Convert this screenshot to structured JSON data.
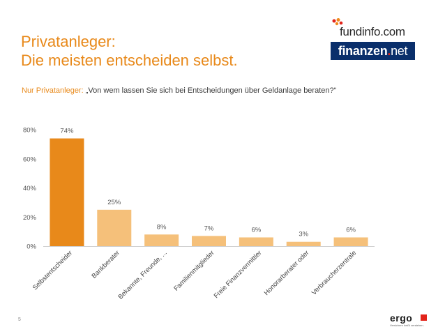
{
  "title": {
    "line1": "Privatanleger:",
    "line2": "Die meisten entscheiden selbst."
  },
  "subtitle": {
    "lead": "Nur Privatanleger:",
    "question": "„Von wem lassen Sie sich bei Entscheidungen über Geldanlage beraten?“"
  },
  "logos": {
    "fundinfo": "fundinfo.com",
    "finanzen_main": "finanzen",
    "finanzen_sep": ".",
    "finanzen_net": "net",
    "ergo": "ergo",
    "ergo_tagline": "Versichern heißt verstehen."
  },
  "footer": {
    "page_number": "5"
  },
  "colors": {
    "accent": "#E8891A",
    "bar_highlight": "#E8891A",
    "bar_regular": "#F5C07A",
    "axis": "#d0d0d0",
    "finanzen_bg": "#0a2f6b",
    "ergo_red": "#e2231a"
  },
  "chart_data": {
    "type": "bar",
    "title": "",
    "xlabel": "",
    "ylabel": "",
    "ylim": [
      0,
      80
    ],
    "yticks": [
      0,
      20,
      40,
      60,
      80
    ],
    "ytick_labels": [
      "0%",
      "20%",
      "40%",
      "60%",
      "80%"
    ],
    "grid": false,
    "categories": [
      "Selbstentscheider",
      "Bankberater",
      "Bekannte, Freunde, ...",
      "Familienmitglieder",
      "Freie Finanzvermittler",
      "Honorarberater oder",
      "Verbraucherzentrale"
    ],
    "values": [
      74,
      25,
      8,
      7,
      6,
      3,
      6
    ],
    "value_labels": [
      "74%",
      "25%",
      "8%",
      "7%",
      "6%",
      "3%",
      "6%"
    ]
  }
}
